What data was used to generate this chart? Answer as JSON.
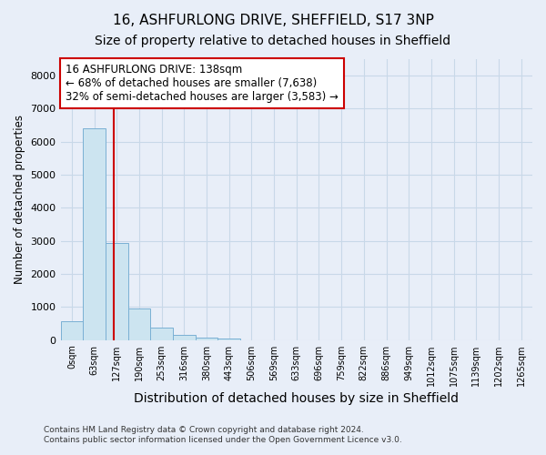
{
  "title_line1": "16, ASHFURLONG DRIVE, SHEFFIELD, S17 3NP",
  "title_line2": "Size of property relative to detached houses in Sheffield",
  "xlabel": "Distribution of detached houses by size in Sheffield",
  "ylabel": "Number of detached properties",
  "footer_line1": "Contains HM Land Registry data © Crown copyright and database right 2024.",
  "footer_line2": "Contains public sector information licensed under the Open Government Licence v3.0.",
  "bar_labels": [
    "0sqm",
    "63sqm",
    "127sqm",
    "190sqm",
    "253sqm",
    "316sqm",
    "380sqm",
    "443sqm",
    "506sqm",
    "569sqm",
    "633sqm",
    "696sqm",
    "759sqm",
    "822sqm",
    "886sqm",
    "949sqm",
    "1012sqm",
    "1075sqm",
    "1139sqm",
    "1202sqm",
    "1265sqm"
  ],
  "bar_values": [
    575,
    6400,
    2950,
    950,
    375,
    150,
    80,
    50,
    5,
    0,
    0,
    0,
    0,
    0,
    0,
    0,
    0,
    0,
    0,
    0,
    0
  ],
  "bar_color": "#cce4f0",
  "bar_edge_color": "#7ab0d4",
  "bar_edge_width": 0.7,
  "grid_color": "#c8d8e8",
  "background_color": "#e8eef8",
  "property_label": "16 ASHFURLONG DRIVE: 138sqm",
  "annotation_line1": "← 68% of detached houses are smaller (7,638)",
  "annotation_line2": "32% of semi-detached houses are larger (3,583) →",
  "vline_color": "#cc0000",
  "annotation_box_edge_color": "#cc0000",
  "annotation_fontsize": 8.5,
  "title_fontsize1": 11,
  "title_fontsize2": 10,
  "ylabel_fontsize": 8.5,
  "xlabel_fontsize": 10,
  "tick_fontsize": 7,
  "ylim": [
    0,
    8500
  ],
  "vline_x": 1.85
}
